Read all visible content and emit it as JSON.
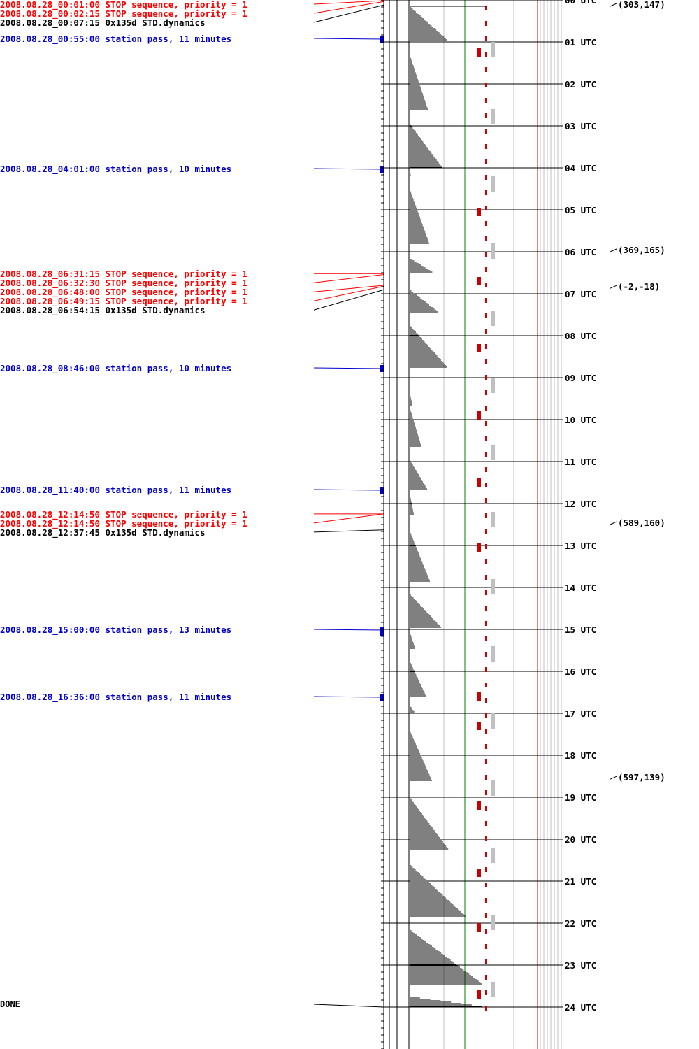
{
  "events": [
    {
      "text": "2008.08.28_00:01:00 STOP sequence, priority = 1",
      "kind": "stop",
      "hour": 0.0167
    },
    {
      "text": "2008.08.28_00:02:15 STOP sequence, priority = 1",
      "kind": "stop",
      "hour": 0.0375
    },
    {
      "text": "2008.08.28_00:07:15 0x135d STD.dynamics",
      "kind": "std",
      "hour": 0.1208
    },
    {
      "text": "2008.08.28_00:55:00 station pass, 11 minutes",
      "kind": "pass",
      "hour": 0.9167,
      "dur_min": 11
    },
    {
      "text": "2008.08.28_04:01:00 station pass, 10 minutes",
      "kind": "pass",
      "hour": 4.0167,
      "dur_min": 10
    },
    {
      "text": "2008.08.28_06:31:15 STOP sequence, priority = 1",
      "kind": "stop",
      "hour": 6.5208
    },
    {
      "text": "2008.08.28_06:32:30 STOP sequence, priority = 1",
      "kind": "stop",
      "hour": 6.5417
    },
    {
      "text": "2008.08.28_06:48:00 STOP sequence, priority = 1",
      "kind": "stop",
      "hour": 6.8
    },
    {
      "text": "2008.08.28_06:49:15 STOP sequence, priority = 1",
      "kind": "stop",
      "hour": 6.8208
    },
    {
      "text": "2008.08.28_06:54:15 0x135d STD.dynamics",
      "kind": "std",
      "hour": 6.9042
    },
    {
      "text": "2008.08.28_08:46:00 station pass, 10 minutes",
      "kind": "pass",
      "hour": 8.7667,
      "dur_min": 10
    },
    {
      "text": "2008.08.28_11:40:00 station pass, 11 minutes",
      "kind": "pass",
      "hour": 11.6667,
      "dur_min": 11
    },
    {
      "text": "2008.08.28_12:14:50 STOP sequence, priority = 1",
      "kind": "stop",
      "hour": 12.2472
    },
    {
      "text": "2008.08.28_12:14:50 STOP sequence, priority = 1",
      "kind": "stop",
      "hour": 12.2472
    },
    {
      "text": "2008.08.28_12:37:45 0x135d STD.dynamics",
      "kind": "std",
      "hour": 12.6292
    },
    {
      "text": "2008.08.28_15:00:00 station pass, 13 minutes",
      "kind": "pass",
      "hour": 15.0,
      "dur_min": 13
    },
    {
      "text": "2008.08.28_16:36:00 station pass, 11 minutes",
      "kind": "pass",
      "hour": 16.6,
      "dur_min": 11
    }
  ],
  "done_label": "DONE",
  "hour_labels": [
    "00 UTC",
    "01 UTC",
    "02 UTC",
    "03 UTC",
    "04 UTC",
    "05 UTC",
    "06 UTC",
    "07 UTC",
    "08 UTC",
    "09 UTC",
    "10 UTC",
    "11 UTC",
    "12 UTC",
    "13 UTC",
    "14 UTC",
    "15 UTC",
    "16 UTC",
    "17 UTC",
    "18 UTC",
    "19 UTC",
    "20 UTC",
    "21 UTC",
    "22 UTC",
    "23 UTC",
    "24 UTC"
  ],
  "markers": [
    {
      "text": "(303,147)",
      "hour": 0.1
    },
    {
      "text": "(369,165)",
      "hour": 5.95
    },
    {
      "text": "(-2,-18)",
      "hour": 6.82
    },
    {
      "text": "(589,160)",
      "hour": 12.45
    },
    {
      "text": "(597,139)",
      "hour": 18.52
    }
  ],
  "colors": {
    "stop": "#ff0000",
    "pass": "#0000cc",
    "std": "#000000",
    "grey": "#c0c0c0",
    "green": "#008000",
    "red": "#cc0000"
  }
}
